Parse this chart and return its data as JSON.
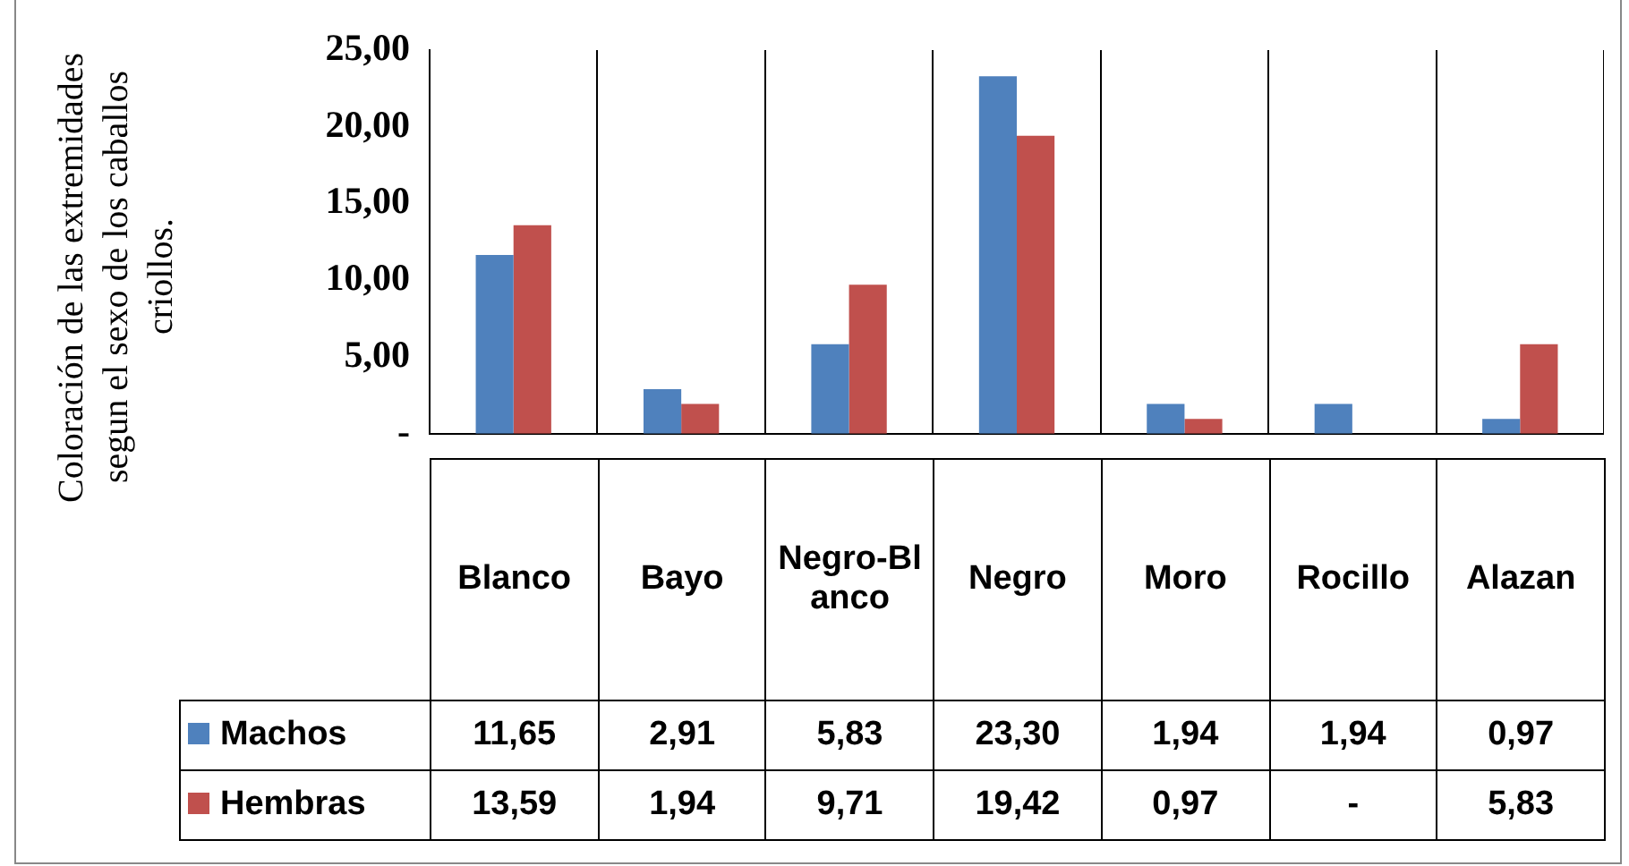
{
  "chart_data": {
    "type": "bar",
    "ylabel": "Coloración de las extremidades segun el sexo de los caballos criollos.",
    "categories": [
      "Blanco",
      "Bayo",
      "Negro-Blanco",
      "Negro",
      "Moro",
      "Rocillo",
      "Alazan"
    ],
    "series": [
      {
        "name": "Machos",
        "color": "#4f81bd",
        "values": [
          11.65,
          2.91,
          5.83,
          23.3,
          1.94,
          1.94,
          0.97
        ],
        "value_labels": [
          "11,65",
          "2,91",
          "5,83",
          "23,30",
          "1,94",
          "1,94",
          "0,97"
        ]
      },
      {
        "name": "Hembras",
        "color": "#c0504d",
        "values": [
          13.59,
          1.94,
          9.71,
          19.42,
          0.97,
          0,
          5.83
        ],
        "value_labels": [
          "13,59",
          "1,94",
          "9,71",
          "19,42",
          "0,97",
          "-",
          "5,83"
        ]
      }
    ],
    "ylim": [
      0,
      25
    ],
    "yticks": [
      {
        "value": 0,
        "label": "-"
      },
      {
        "value": 5,
        "label": "5,00"
      },
      {
        "value": 10,
        "label": "10,00"
      },
      {
        "value": 15,
        "label": "15,00"
      },
      {
        "value": 20,
        "label": "20,00"
      },
      {
        "value": 25,
        "label": "25,00"
      }
    ],
    "grid": "x",
    "legend": "bottom"
  }
}
